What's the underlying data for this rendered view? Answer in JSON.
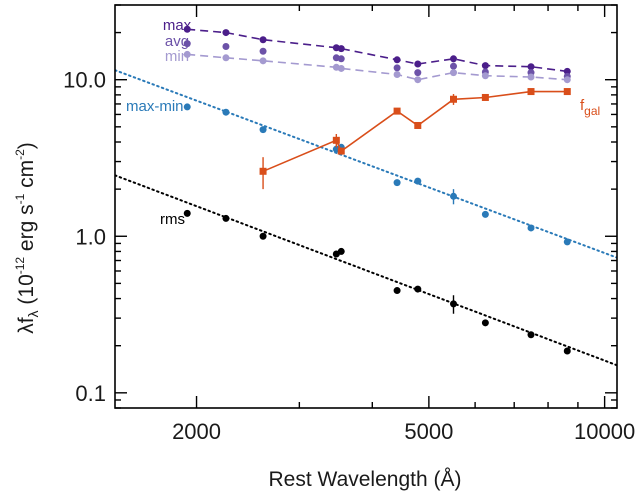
{
  "chart_data": {
    "type": "scatter",
    "xlabel": "Rest Wavelength (Å)",
    "ylabel_main": "λf",
    "ylabel_sub": "λ",
    "ylabel_units_1": " (10",
    "ylabel_units_exp1": "-12",
    "ylabel_units_2": " erg s",
    "ylabel_units_exp2": "-1",
    "ylabel_units_3": " cm",
    "ylabel_units_exp3": "-2",
    "ylabel_units_4": ")",
    "xscale": "log",
    "yscale": "log",
    "xlim": [
      1450,
      10500
    ],
    "ylim": [
      0.08,
      30
    ],
    "xticks": [
      {
        "value": 2000,
        "label": "2000"
      },
      {
        "value": 5000,
        "label": "5000"
      },
      {
        "value": 10000,
        "label": "10000"
      }
    ],
    "yticks": [
      {
        "value": 0.1,
        "label": "0.1"
      },
      {
        "value": 1.0,
        "label": "1.0"
      },
      {
        "value": 10.0,
        "label": "10.0"
      }
    ],
    "series": [
      {
        "name": "max",
        "color": "#4b1e8a",
        "style": "dashed",
        "marker": "circle",
        "x": [
          1928,
          2246,
          2600,
          3471,
          3539,
          4411,
          4786,
          5510,
          6248,
          7480,
          8630
        ],
        "y": [
          21.0,
          20.0,
          18.0,
          16.0,
          15.8,
          13.4,
          12.6,
          13.6,
          12.3,
          12.1,
          11.3
        ]
      },
      {
        "name": "avg",
        "color": "#6c52a8",
        "style": "none",
        "marker": "circle",
        "x": [
          1928,
          2246,
          2600,
          3471,
          3539,
          4411,
          4786,
          5510,
          6248,
          7480,
          8630
        ],
        "y": [
          17.0,
          16.3,
          15.2,
          13.8,
          13.6,
          11.9,
          11.1,
          12.2,
          11.2,
          11.1,
          10.5
        ]
      },
      {
        "name": "min",
        "color": "#a49ad0",
        "style": "dashed",
        "marker": "circle",
        "x": [
          1928,
          2246,
          2600,
          3471,
          3539,
          4411,
          4786,
          5510,
          6248,
          7480,
          8630
        ],
        "y": [
          14.5,
          13.8,
          13.2,
          12.0,
          11.8,
          10.8,
          10.0,
          11.1,
          10.6,
          10.4,
          10.0
        ]
      },
      {
        "name": "max-min",
        "color": "#2a7ab8",
        "style": "none",
        "marker": "circle",
        "x": [
          1928,
          2246,
          2600,
          3471,
          3539,
          4411,
          4786,
          5510,
          6248,
          7480,
          8630
        ],
        "y": [
          6.7,
          6.2,
          4.8,
          3.6,
          3.7,
          2.2,
          2.25,
          1.8,
          1.38,
          1.13,
          0.92
        ],
        "err": [
          0,
          0,
          0,
          0,
          0,
          0,
          0,
          0.2,
          0,
          0,
          0
        ]
      },
      {
        "name": "rms",
        "color": "#000000",
        "style": "none",
        "marker": "circle",
        "x": [
          1928,
          2246,
          2600,
          3471,
          3539,
          4411,
          4786,
          5510,
          6248,
          7480,
          8630
        ],
        "y": [
          1.4,
          1.3,
          1.0,
          0.77,
          0.8,
          0.45,
          0.46,
          0.37,
          0.28,
          0.235,
          0.185
        ],
        "err": [
          0,
          0,
          0,
          0,
          0,
          0,
          0,
          0.05,
          0,
          0,
          0
        ]
      },
      {
        "name": "f",
        "name_sub": "gal",
        "color": "#d94e1a",
        "style": "solid",
        "marker": "square",
        "x": [
          2600,
          3471,
          3539,
          4411,
          4786,
          5510,
          6248,
          7480,
          8630
        ],
        "y": [
          2.6,
          4.1,
          3.5,
          6.3,
          5.1,
          7.5,
          7.7,
          8.4,
          8.4
        ],
        "err": [
          0.6,
          0.4,
          0,
          0.3,
          0,
          0.6,
          0,
          0,
          0
        ]
      }
    ],
    "fits": [
      {
        "name": "max-min-fit",
        "color": "#2a7ab8",
        "style": "dotted",
        "x": [
          1450,
          10500
        ],
        "y": [
          11.5,
          0.73
        ]
      },
      {
        "name": "rms-fit",
        "color": "#000000",
        "style": "dotted",
        "x": [
          1450,
          10500
        ],
        "y": [
          2.45,
          0.15
        ]
      }
    ]
  }
}
